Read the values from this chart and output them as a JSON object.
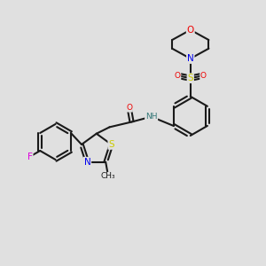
{
  "bg_color": "#e0e0e0",
  "C": "#1a1a1a",
  "N": "#0000ee",
  "O": "#ee0000",
  "S": "#cccc00",
  "F": "#dd00dd",
  "H": "#337777",
  "bond_color": "#1a1a1a",
  "lw": 1.5,
  "fs": 7.5,
  "fs_small": 6.5
}
